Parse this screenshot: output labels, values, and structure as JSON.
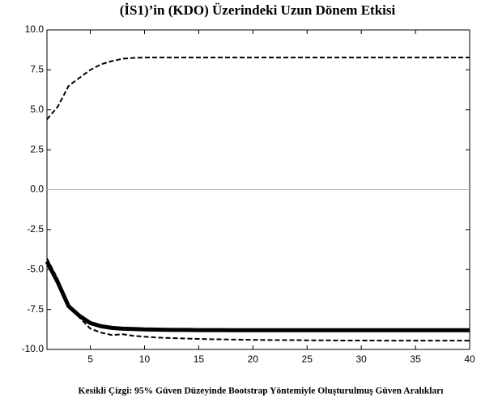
{
  "chart_data": {
    "type": "line",
    "title": "(İS1)’in (KDO) Üzerindeki Uzun Dönem Etkisi",
    "caption": "Kesikli Çizgi: 95%  Güven Düzeyinde Bootstrap Yöntemiyle Oluşturulmuş Güven Aralıkları",
    "x": [
      1,
      2,
      3,
      4,
      5,
      6,
      7,
      8,
      9,
      10,
      11,
      12,
      13,
      14,
      15,
      16,
      17,
      18,
      19,
      20,
      21,
      22,
      23,
      24,
      25,
      26,
      27,
      28,
      29,
      30,
      31,
      32,
      33,
      34,
      35,
      36,
      37,
      38,
      39,
      40
    ],
    "series": [
      {
        "color": "#000000",
        "line_style": "dashed",
        "values": [
          4.4,
          5.2,
          6.5,
          7.0,
          7.5,
          7.85,
          8.05,
          8.2,
          8.25,
          8.27,
          8.27,
          8.27,
          8.27,
          8.27,
          8.27,
          8.27,
          8.27,
          8.27,
          8.27,
          8.27,
          8.27,
          8.27,
          8.27,
          8.27,
          8.27,
          8.27,
          8.27,
          8.27,
          8.27,
          8.27,
          8.27,
          8.27,
          8.27,
          8.27,
          8.27,
          8.27,
          8.27,
          8.27,
          8.27,
          8.27
        ]
      },
      {
        "color": "#000000",
        "line_style": "solid",
        "values": [
          -4.5,
          -5.8,
          -7.3,
          -7.9,
          -8.35,
          -8.55,
          -8.65,
          -8.7,
          -8.72,
          -8.75,
          -8.76,
          -8.77,
          -8.78,
          -8.78,
          -8.79,
          -8.79,
          -8.79,
          -8.8,
          -8.8,
          -8.8,
          -8.8,
          -8.8,
          -8.8,
          -8.8,
          -8.8,
          -8.8,
          -8.8,
          -8.8,
          -8.8,
          -8.8,
          -8.8,
          -8.8,
          -8.8,
          -8.8,
          -8.8,
          -8.8,
          -8.8,
          -8.8,
          -8.8,
          -8.8
        ]
      },
      {
        "color": "#000000",
        "line_style": "dashed",
        "values": [
          -4.3,
          -5.6,
          -7.3,
          -8.0,
          -8.7,
          -8.95,
          -9.1,
          -9.05,
          -9.15,
          -9.2,
          -9.25,
          -9.28,
          -9.3,
          -9.32,
          -9.34,
          -9.36,
          -9.37,
          -9.38,
          -9.39,
          -9.4,
          -9.41,
          -9.41,
          -9.42,
          -9.42,
          -9.43,
          -9.43,
          -9.43,
          -9.44,
          -9.44,
          -9.44,
          -9.44,
          -9.45,
          -9.45,
          -9.45,
          -9.45,
          -9.45,
          -9.45,
          -9.45,
          -9.45,
          -9.45
        ]
      }
    ],
    "xlim": [
      1,
      40
    ],
    "xticks": [
      5,
      10,
      15,
      20,
      25,
      30,
      35,
      40
    ],
    "ylim": [
      -10,
      10
    ],
    "yticks": [
      {
        "value": -10,
        "label": "-10.0"
      },
      -7.5,
      {
        "value": -5,
        "label": "-5.0"
      },
      -2.5,
      {
        "value": 0,
        "label": "0.0"
      },
      2.5,
      {
        "value": 5,
        "label": "5.0"
      },
      7.5,
      {
        "value": 10,
        "label": "10.0"
      }
    ],
    "zero_line": true
  }
}
